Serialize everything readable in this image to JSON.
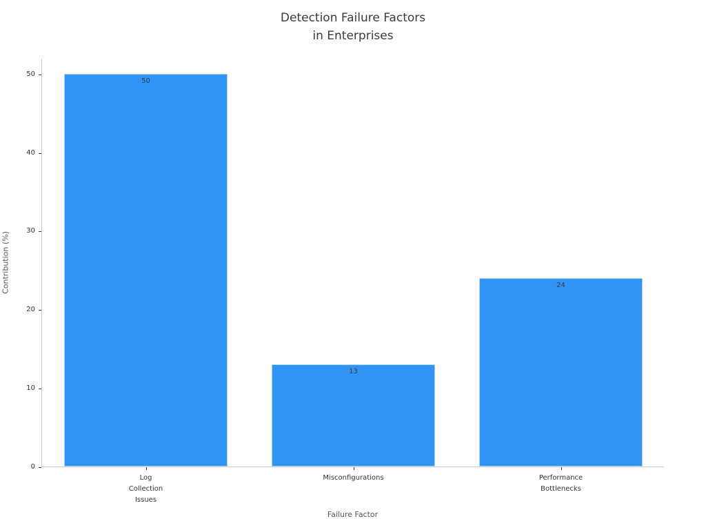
{
  "chart_data": {
    "type": "bar",
    "title": "Detection Failure Factors\nin Enterprises",
    "xlabel": "Failure Factor",
    "ylabel": "Contribution (%)",
    "categories": [
      "Log\nCollection\nIssues",
      "Misconfigurations",
      "Performance\nBottlenecks"
    ],
    "values": [
      50,
      13,
      24
    ],
    "bar_labels": [
      "50",
      "13",
      "24"
    ],
    "yticks": [
      0,
      10,
      20,
      30,
      40,
      50
    ],
    "ylim": [
      0,
      52
    ],
    "grid": false,
    "legend_position": "none",
    "colors": {
      "bar_fill": "#2f94f5",
      "bar_edge": "#add8e6",
      "spine": "#cccccc",
      "tick_text": "#333333",
      "title_text": "#3a3a3a",
      "axis_label_text": "#555555",
      "value_label_text": "#3d3d3d"
    }
  }
}
